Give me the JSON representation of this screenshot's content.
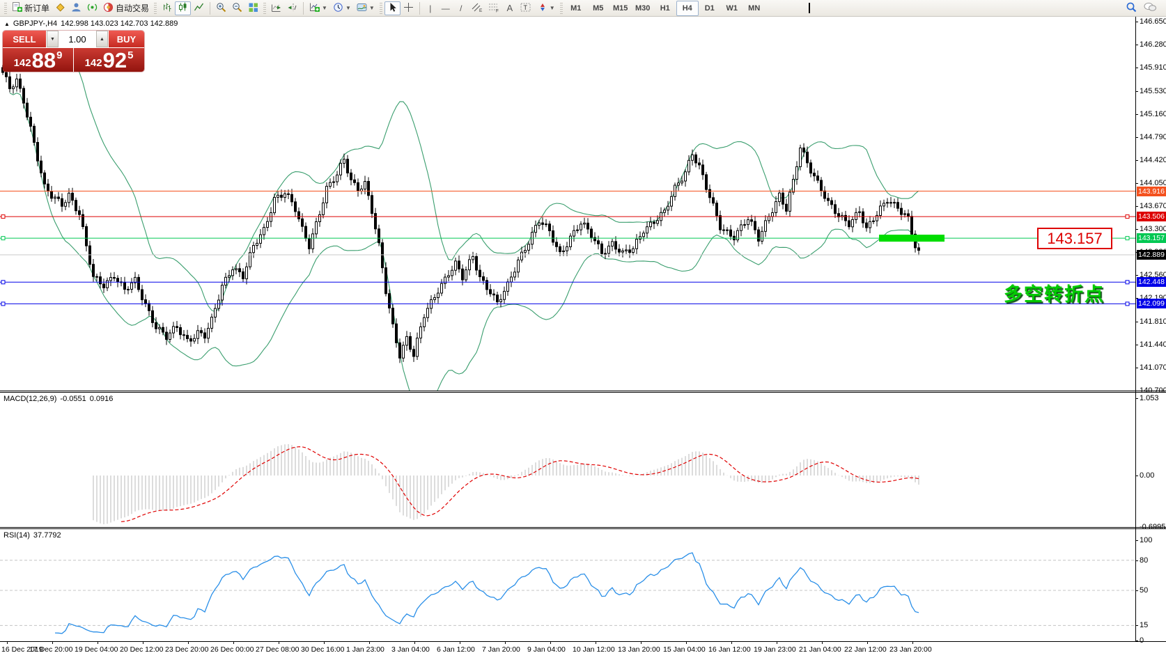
{
  "toolbar": {
    "new_order_label": "新订单",
    "autotrading_label": "自动交易",
    "timeframes": [
      "M1",
      "M5",
      "M15",
      "M30",
      "H1",
      "H4",
      "D1",
      "W1",
      "MN"
    ],
    "active_timeframe": "H4"
  },
  "chart": {
    "symbol_title": "GBPJPY-,H4",
    "ohlc_text": "142.998 143.023 142.703 142.889",
    "trade_panel": {
      "sell_label": "SELL",
      "buy_label": "BUY",
      "volume": "1.00",
      "sell_prefix": "142",
      "sell_main": "88",
      "sell_sup": "9",
      "buy_prefix": "142",
      "buy_main": "92",
      "buy_sup": "5"
    },
    "annotation": {
      "price_box_text": "143.157",
      "cn_text": "多空转折点"
    }
  },
  "chart_data": {
    "type": "candlestick",
    "symbol": "GBPJPY",
    "timeframe": "H4",
    "ohlc_display": {
      "open": "142.998",
      "high": "143.023",
      "low": "142.703",
      "close": "142.889"
    },
    "price_ylim": [
      140.7,
      146.65
    ],
    "price_axis_ticks": [
      146.65,
      146.28,
      145.91,
      145.53,
      145.16,
      144.79,
      144.42,
      144.05,
      143.67,
      143.3,
      142.93,
      142.56,
      142.19,
      141.81,
      141.44,
      141.07,
      140.7
    ],
    "marked_prices": [
      {
        "price": 143.916,
        "label": "143.916",
        "color": "#f4511e",
        "kind": "hline"
      },
      {
        "price": 143.506,
        "label": "143.506",
        "color": "#dd0000",
        "kind": "hline",
        "anchors": true
      },
      {
        "price": 143.157,
        "label": "143.157",
        "color": "#00c853",
        "kind": "hline",
        "anchors": true
      },
      {
        "price": 142.889,
        "label": "142.889",
        "color": "#000000",
        "kind": "current"
      },
      {
        "price": 142.448,
        "label": "142.448",
        "color": "#0000e8",
        "kind": "hline",
        "anchors": true
      },
      {
        "price": 142.099,
        "label": "142.099",
        "color": "#0000e8",
        "kind": "hline",
        "anchors": true
      }
    ],
    "n_candles": 264,
    "bars_per_label": 13,
    "price_path_anchors": [
      [
        0,
        145.8
      ],
      [
        2,
        145.55
      ],
      [
        4,
        145.7
      ],
      [
        6,
        145.4
      ],
      [
        8,
        144.95
      ],
      [
        10,
        144.45
      ],
      [
        12,
        143.95
      ],
      [
        14,
        143.82
      ],
      [
        17,
        143.72
      ],
      [
        19,
        143.88
      ],
      [
        22,
        143.55
      ],
      [
        24,
        143.0
      ],
      [
        26,
        142.5
      ],
      [
        29,
        142.42
      ],
      [
        32,
        142.58
      ],
      [
        35,
        142.3
      ],
      [
        38,
        142.45
      ],
      [
        41,
        142.1
      ],
      [
        44,
        141.75
      ],
      [
        47,
        141.55
      ],
      [
        50,
        141.7
      ],
      [
        53,
        141.52
      ],
      [
        56,
        141.65
      ],
      [
        58,
        141.58
      ],
      [
        60,
        141.8
      ],
      [
        63,
        142.38
      ],
      [
        66,
        142.72
      ],
      [
        69,
        142.55
      ],
      [
        72,
        143.0
      ],
      [
        75,
        143.28
      ],
      [
        78,
        143.82
      ],
      [
        81,
        143.9
      ],
      [
        84,
        143.6
      ],
      [
        86,
        143.28
      ],
      [
        88,
        143.05
      ],
      [
        91,
        143.6
      ],
      [
        93,
        143.95
      ],
      [
        96,
        144.15
      ],
      [
        98,
        144.42
      ],
      [
        100,
        144.1
      ],
      [
        102,
        143.98
      ],
      [
        104,
        144.05
      ],
      [
        106,
        143.58
      ],
      [
        108,
        143.0
      ],
      [
        110,
        142.3
      ],
      [
        112,
        141.75
      ],
      [
        114,
        141.3
      ],
      [
        116,
        141.55
      ],
      [
        118,
        141.25
      ],
      [
        121,
        141.9
      ],
      [
        125,
        142.35
      ],
      [
        128,
        142.6
      ],
      [
        130,
        142.72
      ],
      [
        132,
        142.5
      ],
      [
        135,
        142.88
      ],
      [
        137,
        142.55
      ],
      [
        140,
        142.3
      ],
      [
        142,
        142.08
      ],
      [
        145,
        142.38
      ],
      [
        148,
        142.82
      ],
      [
        151,
        143.12
      ],
      [
        154,
        143.42
      ],
      [
        157,
        143.25
      ],
      [
        160,
        142.92
      ],
      [
        163,
        143.18
      ],
      [
        166,
        143.38
      ],
      [
        169,
        143.2
      ],
      [
        172,
        142.95
      ],
      [
        175,
        143.08
      ],
      [
        178,
        142.88
      ],
      [
        181,
        142.98
      ],
      [
        184,
        143.32
      ],
      [
        186,
        143.4
      ],
      [
        190,
        143.55
      ],
      [
        193,
        143.95
      ],
      [
        196,
        144.25
      ],
      [
        198,
        144.55
      ],
      [
        200,
        144.3
      ],
      [
        202,
        143.95
      ],
      [
        206,
        143.35
      ],
      [
        210,
        143.2
      ],
      [
        214,
        143.45
      ],
      [
        217,
        143.15
      ],
      [
        220,
        143.55
      ],
      [
        223,
        143.85
      ],
      [
        225,
        143.6
      ],
      [
        227,
        144.05
      ],
      [
        229,
        144.62
      ],
      [
        231,
        144.4
      ],
      [
        233,
        144.18
      ],
      [
        235,
        143.95
      ],
      [
        237,
        143.7
      ],
      [
        240,
        143.5
      ],
      [
        243,
        143.42
      ],
      [
        246,
        143.62
      ],
      [
        248,
        143.28
      ],
      [
        251,
        143.52
      ],
      [
        254,
        143.8
      ],
      [
        257,
        143.68
      ],
      [
        260,
        143.45
      ],
      [
        262,
        143.0
      ],
      [
        263,
        142.89
      ]
    ],
    "bollinger": {
      "period": 20,
      "deviation": 2,
      "color": "#3a9e6e"
    },
    "highlight_rect": {
      "price": 143.157,
      "candle_from": 252,
      "candle_to": 270,
      "color": "#00dd00"
    },
    "macd": {
      "label": "MACD(12,26,9)",
      "value_main": "-0.0551",
      "value_signal": "0.0916",
      "axis_ticks": [
        {
          "text": "1.053",
          "value": 1.053
        },
        {
          "text": "0.00",
          "value": 0.0
        },
        {
          "text": "-0.6995",
          "value": -0.6995
        }
      ],
      "histogram_color": "#b8b8b8",
      "signal_color": "#e00000"
    },
    "rsi": {
      "label": "RSI(14)",
      "value": "37.7792",
      "axis_ticks": [
        100,
        80,
        50,
        15,
        0
      ],
      "levels": [
        80,
        50,
        15
      ],
      "color": "#2a8fe8"
    },
    "time_labels": [
      "16 Dec 2019",
      "17 Dec 20:00",
      "19 Dec 04:00",
      "20 Dec 12:00",
      "23 Dec 20:00",
      "26 Dec 00:00",
      "27 Dec 08:00",
      "30 Dec 16:00",
      "1 Jan 23:00",
      "3 Jan 04:00",
      "6 Jan 12:00",
      "7 Jan 20:00",
      "9 Jan 04:00",
      "10 Jan 12:00",
      "13 Jan 20:00",
      "15 Jan 04:00",
      "16 Jan 12:00",
      "19 Jan 23:00",
      "21 Jan 04:00",
      "22 Jan 12:00",
      "23 Jan 20:00"
    ]
  }
}
